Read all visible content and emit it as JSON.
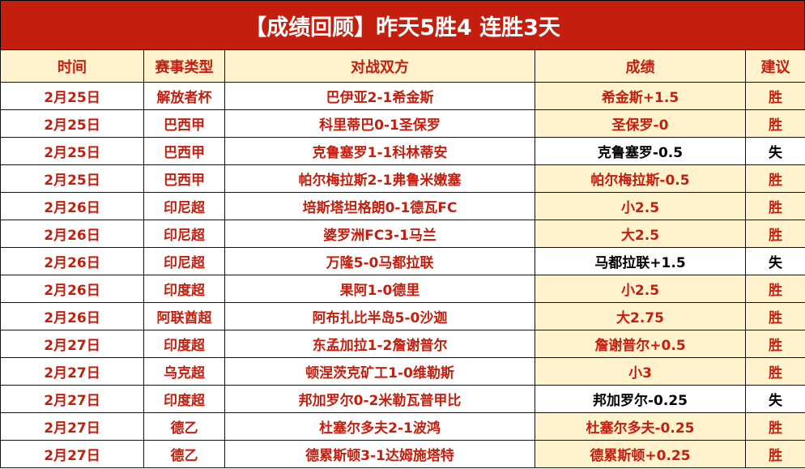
{
  "title": "【成绩回顾】昨天5胜4 连胜3天",
  "headers": [
    "时间",
    "赛事类型",
    "对战双方",
    "成绩",
    "建议"
  ],
  "colors": {
    "title_bg": "#c41e0e",
    "header_bg": "#fff2cc",
    "win_text": "#c41e0e",
    "loss_text": "#000000"
  },
  "rows": [
    [
      "2月25日",
      "解放者杯",
      "巴伊亚2-1希金斯",
      "希金斯+1.5",
      "胜"
    ],
    [
      "2月25日",
      "巴西甲",
      "科里蒂巴0-1圣保罗",
      "圣保罗-0",
      "胜"
    ],
    [
      "2月25日",
      "巴西甲",
      "克鲁塞罗1-1科林蒂安",
      "克鲁塞罗-0.5",
      "失"
    ],
    [
      "2月25日",
      "巴西甲",
      "帕尔梅拉斯2-1弗鲁米嫩塞",
      "帕尔梅拉斯-0.5",
      "胜"
    ],
    [
      "2月26日",
      "印尼超",
      "培斯塔坦格朗0-1德瓦FC",
      "小2.5",
      "胜"
    ],
    [
      "2月26日",
      "印尼超",
      "婆罗洲FC3-1马兰",
      "大2.5",
      "胜"
    ],
    [
      "2月26日",
      "印尼超",
      "万隆5-0马都拉联",
      "马都拉联+1.5",
      "失"
    ],
    [
      "2月26日",
      "印度超",
      "果阿1-0德里",
      "小2.5",
      "胜"
    ],
    [
      "2月26日",
      "阿联酋超",
      "阿布扎比半岛5-0沙迦",
      "大2.75",
      "胜"
    ],
    [
      "2月27日",
      "印度超",
      "东孟加拉1-2詹谢普尔",
      "詹谢普尔+0.5",
      "胜"
    ],
    [
      "2月27日",
      "乌克超",
      "顿涅茨克矿工1-0维勒斯",
      "小3",
      "胜"
    ],
    [
      "2月27日",
      "印度超",
      "邦加罗尔0-2米勒瓦普甲比",
      "邦加罗尔-0.25",
      "失"
    ],
    [
      "2月27日",
      "德乙",
      "杜塞尔多夫2-1波鸿",
      "杜塞尔多夫-0.25",
      "胜"
    ],
    [
      "2月27日",
      "德乙",
      "德累斯顿3-1达姆施塔特",
      "德累斯顿+0.25",
      "胜"
    ]
  ]
}
